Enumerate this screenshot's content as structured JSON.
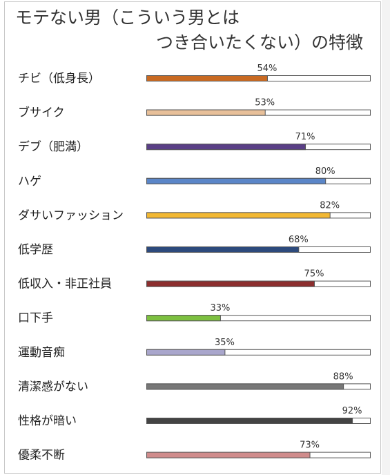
{
  "chart_data": {
    "type": "bar",
    "orientation": "horizontal",
    "title_line1": "モテない男（こういう男とは",
    "title_line2": "つき合いたくない）の特徴",
    "categories": [
      "チビ（低身長）",
      "ブサイク",
      "デブ（肥満）",
      "ハゲ",
      "ダサいファッション",
      "低学歴",
      "低収入・非正社員",
      "口下手",
      "運動音痴",
      "清潔感がない",
      "性格が暗い",
      "優柔不断"
    ],
    "values": [
      54,
      53,
      71,
      80,
      82,
      68,
      75,
      33,
      35,
      88,
      92,
      73
    ],
    "value_labels": [
      "54%",
      "53%",
      "71%",
      "80%",
      "82%",
      "68%",
      "75%",
      "33%",
      "35%",
      "88%",
      "92%",
      "73%"
    ],
    "colors": [
      "#c96a22",
      "#e8c09a",
      "#5a3f86",
      "#5b86c8",
      "#f2b833",
      "#2d4a7c",
      "#8c2e2e",
      "#7dc040",
      "#a9a6cc",
      "#777777",
      "#444444",
      "#d08c8c"
    ],
    "xlim": [
      0,
      100
    ],
    "grid": false,
    "legend": "none"
  }
}
